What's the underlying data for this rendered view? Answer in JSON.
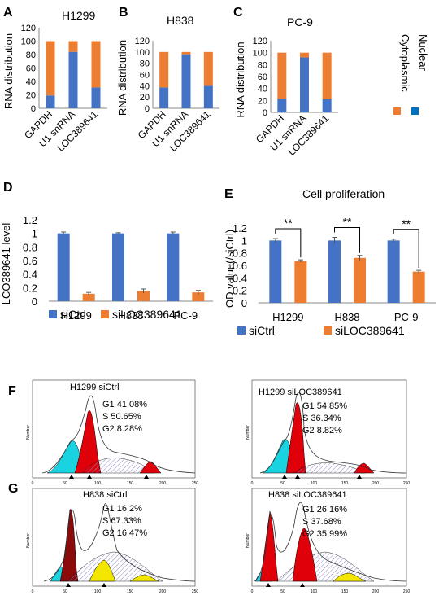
{
  "colors": {
    "blue": "#4472C4",
    "orange": "#ED7D31",
    "error": "#555555",
    "cyan": "#19D3E0",
    "red": "#E0000A",
    "yellow": "#F3E600",
    "hatch": "#8A8AC8"
  },
  "panels": {
    "A": {
      "letter": "A"
    },
    "B": {
      "letter": "B"
    },
    "C": {
      "letter": "C"
    },
    "D": {
      "letter": "D"
    },
    "E": {
      "letter": "E"
    },
    "F": {
      "letter": "F"
    },
    "G": {
      "letter": "G"
    }
  },
  "chart_data": [
    {
      "id": "A",
      "type": "bar",
      "stacked": true,
      "title": "H1299",
      "ylabel": "RNA distribution",
      "ylim": [
        0,
        120
      ],
      "yticks": [
        0,
        20,
        40,
        60,
        80,
        100,
        120
      ],
      "categories": [
        "GAPDH",
        "U1 snRNA",
        "LOC389641"
      ],
      "series": [
        {
          "name": "Nuclear",
          "values": [
            19,
            84,
            31
          ]
        },
        {
          "name": "Cytoplasmic",
          "values": [
            81,
            16,
            69
          ]
        }
      ]
    },
    {
      "id": "B",
      "type": "bar",
      "stacked": true,
      "title": "H838",
      "ylabel": "RNA distribution",
      "ylim": [
        0,
        120
      ],
      "yticks": [
        0,
        20,
        40,
        60,
        80,
        100,
        120
      ],
      "categories": [
        "GAPDH",
        "U1 snRNA",
        "LOC389641"
      ],
      "series": [
        {
          "name": "Nuclear",
          "values": [
            37,
            96,
            40
          ]
        },
        {
          "name": "Cytoplasmic",
          "values": [
            63,
            4,
            60
          ]
        }
      ]
    },
    {
      "id": "C",
      "type": "bar",
      "stacked": true,
      "title": "PC-9",
      "ylabel": "RNA distribution",
      "ylim": [
        0,
        120
      ],
      "yticks": [
        0,
        20,
        40,
        60,
        80,
        100,
        120
      ],
      "categories": [
        "GAPDH",
        "U1 snRNA",
        "LOC389641"
      ],
      "series": [
        {
          "name": "Nuclear",
          "values": [
            23,
            92,
            22
          ]
        },
        {
          "name": "Cytoplasmic",
          "values": [
            77,
            8,
            78
          ]
        }
      ],
      "legend": [
        "Cytoplasmic",
        "Nuclear"
      ]
    },
    {
      "id": "D",
      "type": "bar",
      "title": "",
      "ylabel": "LCO389641 level",
      "ylim": [
        0,
        1.2
      ],
      "yticks": [
        "0",
        "0.2",
        "0.4",
        "0.6",
        "0.8",
        "1",
        "1.2"
      ],
      "categories": [
        "H1299",
        "H838",
        "PC-9"
      ],
      "series": [
        {
          "name": "siCtrl",
          "values": [
            1.0,
            1.0,
            1.0
          ],
          "errors": [
            0.02,
            0.01,
            0.02
          ]
        },
        {
          "name": "siLOC389641",
          "values": [
            0.11,
            0.15,
            0.13
          ],
          "errors": [
            0.02,
            0.03,
            0.03
          ]
        }
      ]
    },
    {
      "id": "E",
      "type": "bar",
      "title": "Cell proliferation",
      "ylabel": "OD value(/siCtrl)",
      "ylim": [
        0,
        1.2
      ],
      "yticks": [
        "0",
        "0.2",
        "0.4",
        "0.6",
        "0.8",
        "1",
        "1.2"
      ],
      "categories": [
        "H1299",
        "H838",
        "PC-9"
      ],
      "significance": "**",
      "series": [
        {
          "name": "siCtrl",
          "values": [
            1.0,
            1.0,
            1.0
          ],
          "errors": [
            0.03,
            0.05,
            0.02
          ]
        },
        {
          "name": "siLOC389641",
          "values": [
            0.67,
            0.72,
            0.5
          ],
          "errors": [
            0.02,
            0.04,
            0.02
          ]
        }
      ]
    }
  ],
  "flow_cytometry": [
    {
      "id": "F1",
      "label": "H1299  siCtrl",
      "g1": "G1 41.08%",
      "s": "S    50.65%",
      "g2": "G2   8.28%"
    },
    {
      "id": "F2",
      "label": "H1299  siLOC389641",
      "g1": "G1 54.85%",
      "s": "S    36.34%",
      "g2": "G2   8.82%"
    },
    {
      "id": "G1",
      "label": "H838  siCtrl",
      "g1": "G1 16.2%",
      "s": "S    67.33%",
      "g2": "G2  16.47%"
    },
    {
      "id": "G2",
      "label": "H838  siLOC389641",
      "g1": "G1 26.16%",
      "s": "S    37.68%",
      "g2": "G2  35.99%"
    }
  ],
  "flow_axis": {
    "xticks": [
      "0",
      "50",
      "100",
      "150",
      "200",
      "250"
    ],
    "ylabel": "Number"
  }
}
